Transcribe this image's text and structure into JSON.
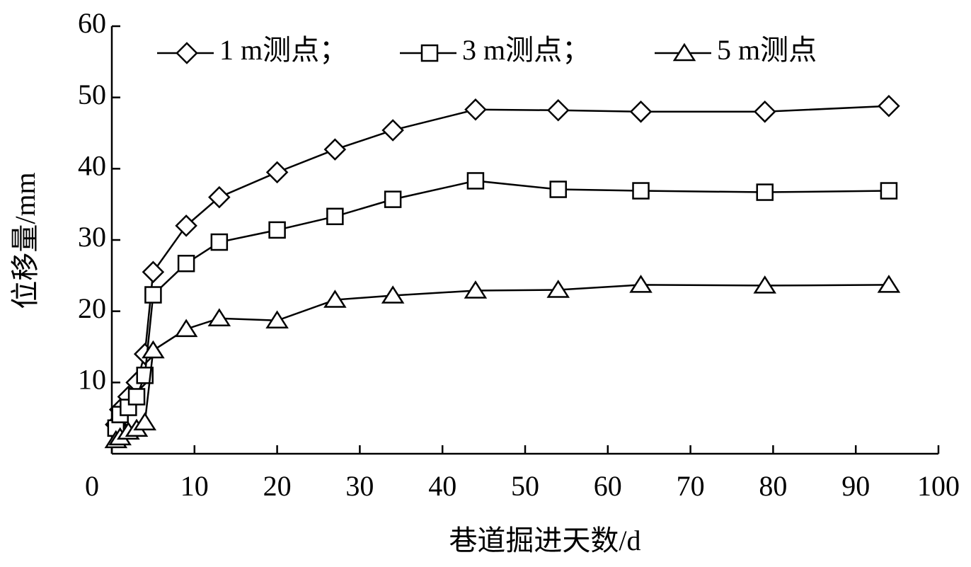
{
  "chart_data": {
    "type": "line",
    "x_label": "巷道掘进天数/d",
    "y_label": "位移量/mm",
    "x": [
      0.5,
      1,
      2,
      3,
      4,
      5,
      9,
      13,
      20,
      27,
      34,
      44,
      54,
      64,
      79,
      94
    ],
    "series": [
      {
        "name": "1 m测点；",
        "color": "#000000",
        "marker": "diamond",
        "values": [
          4.1,
          6.2,
          8,
          10,
          14,
          25.5,
          32,
          36,
          39.5,
          42.7,
          45.4,
          48.3,
          48.2,
          48,
          48,
          48.8
        ]
      },
      {
        "name": "3 m测点；",
        "color": "#000000",
        "marker": "square",
        "values": [
          3.6,
          5.5,
          6.5,
          8,
          11,
          22.3,
          26.7,
          29.7,
          31.4,
          33.3,
          35.7,
          38.3,
          37.1,
          36.9,
          36.7,
          36.9
        ]
      },
      {
        "name": "5 m测点",
        "color": "#000000",
        "marker": "triangle",
        "values": [
          1.9,
          2.3,
          3.1,
          3.5,
          4.4,
          14.5,
          17.5,
          19,
          18.7,
          21.6,
          22.2,
          22.9,
          23,
          23.7,
          23.6,
          23.7
        ]
      }
    ],
    "xlim": [
      0,
      100
    ],
    "xticks": [
      0,
      10,
      20,
      30,
      40,
      50,
      60,
      70,
      80,
      90,
      100
    ],
    "ylim": [
      0,
      60
    ],
    "yticks": [
      10,
      20,
      30,
      40,
      50,
      60
    ],
    "grid": false,
    "legend": "top"
  }
}
